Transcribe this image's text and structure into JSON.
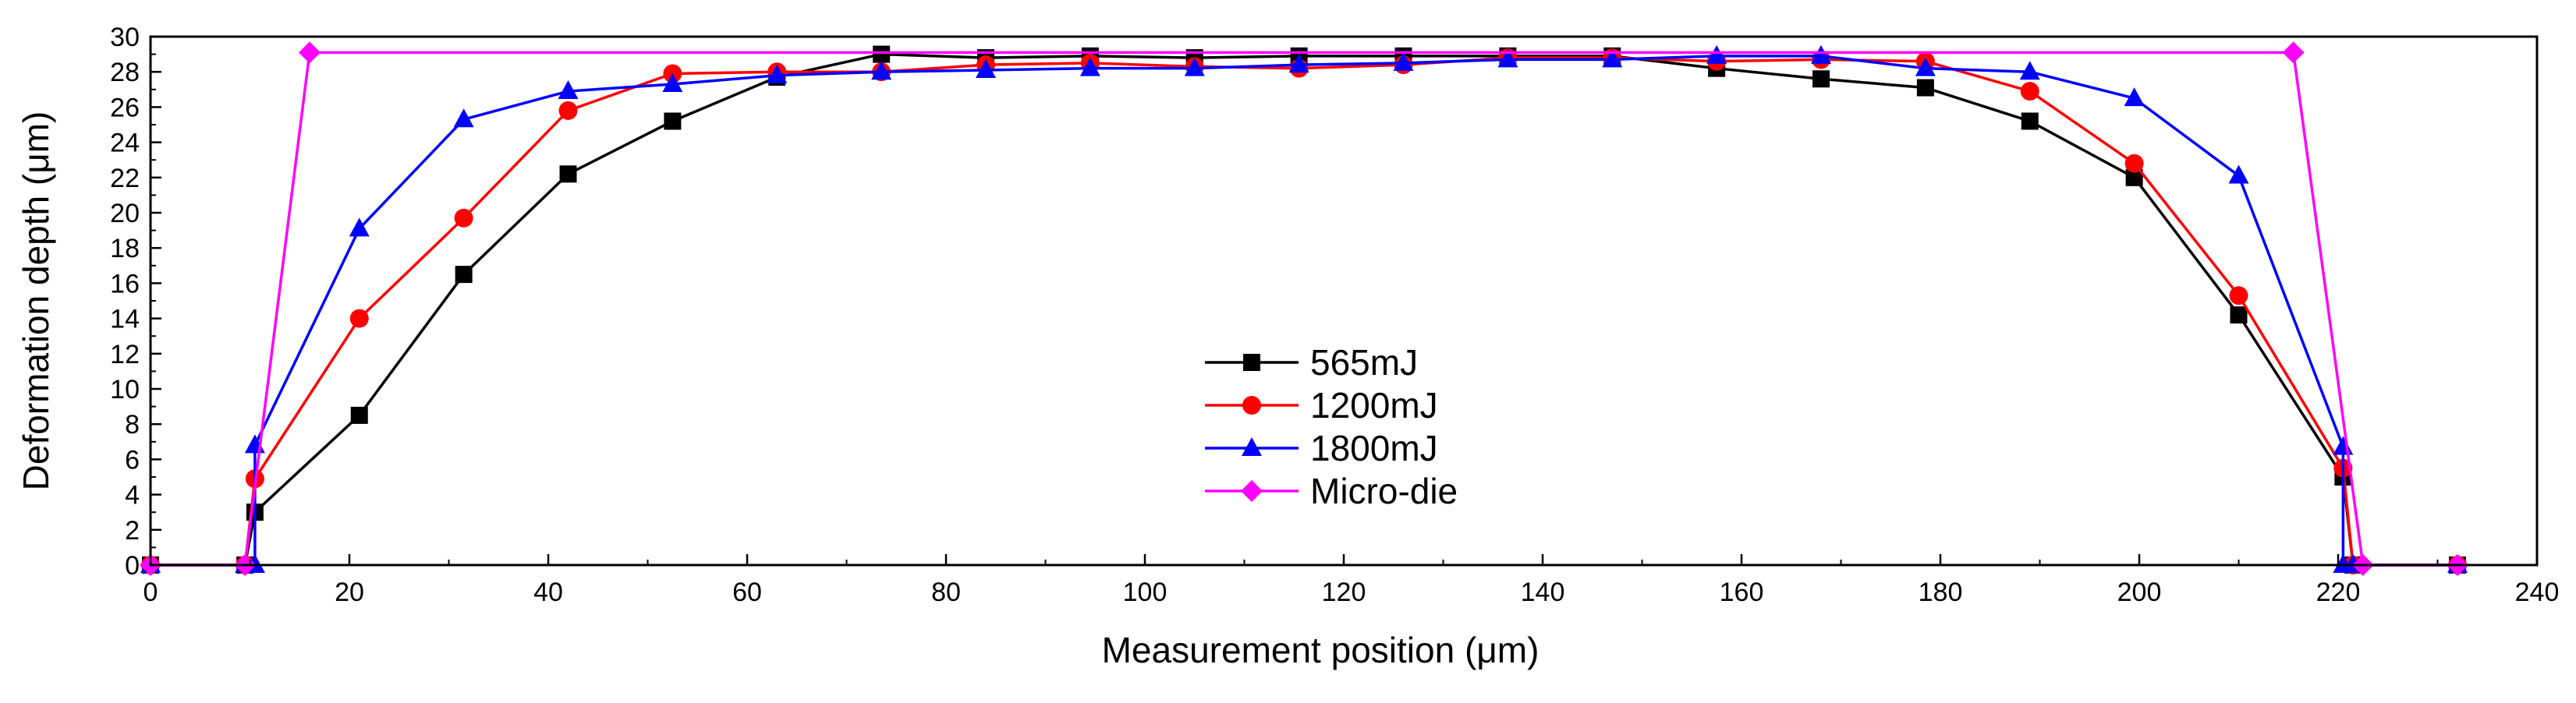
{
  "chart_data": {
    "type": "line",
    "title": "",
    "xlabel": "Measurement position (μm)",
    "ylabel": "Deformation depth (μm)",
    "xlim": [
      0,
      240
    ],
    "ylim": [
      0,
      30
    ],
    "xticks": [
      0,
      20,
      40,
      60,
      80,
      100,
      120,
      140,
      160,
      180,
      200,
      220,
      240
    ],
    "yticks": [
      0,
      2,
      4,
      6,
      8,
      10,
      12,
      14,
      16,
      18,
      20,
      22,
      24,
      26,
      28,
      30
    ],
    "grid": false,
    "legend_position": "center",
    "series": [
      {
        "name": "565mJ",
        "color": "#000000",
        "marker": "square",
        "x": [
          0,
          9.5,
          10.5,
          21,
          31.5,
          42,
          52.5,
          63,
          73.5,
          84,
          94.5,
          105,
          115.5,
          126,
          136.5,
          147,
          157.5,
          168,
          178.5,
          189,
          199.5,
          210,
          220.5,
          221.5,
          232
        ],
        "y": [
          0,
          0,
          3,
          8.5,
          16.5,
          22.2,
          25.2,
          27.7,
          29,
          28.8,
          28.9,
          28.8,
          28.9,
          28.9,
          28.9,
          28.9,
          28.2,
          27.6,
          27.1,
          25.2,
          22,
          14.2,
          5,
          0,
          0
        ]
      },
      {
        "name": "1200mJ",
        "color": "#ff0000",
        "marker": "circle",
        "x": [
          0,
          9.5,
          10.5,
          21,
          31.5,
          42,
          52.5,
          63,
          73.5,
          84,
          94.5,
          105,
          115.5,
          126,
          136.5,
          147,
          157.5,
          168,
          178.5,
          189,
          199.5,
          210,
          220.5,
          221.5,
          232
        ],
        "y": [
          0,
          0,
          4.9,
          14,
          19.7,
          25.8,
          27.9,
          28,
          28,
          28.4,
          28.5,
          28.3,
          28.2,
          28.4,
          28.8,
          28.8,
          28.6,
          28.7,
          28.6,
          26.9,
          22.8,
          15.3,
          5.5,
          0,
          0
        ]
      },
      {
        "name": "1800mJ",
        "color": "#0000ff",
        "marker": "triangle",
        "x": [
          0,
          9.5,
          10.5,
          10.5,
          21,
          31.5,
          42,
          52.5,
          63,
          73.5,
          84,
          94.5,
          105,
          115.5,
          126,
          136.5,
          147,
          157.5,
          168,
          178.5,
          189,
          199.5,
          210,
          220.5,
          220.5,
          221.5,
          232
        ],
        "y": [
          0,
          0,
          0,
          6.8,
          19.1,
          25.3,
          26.9,
          27.3,
          27.8,
          28,
          28.1,
          28.2,
          28.2,
          28.4,
          28.5,
          28.7,
          28.7,
          28.9,
          28.9,
          28.2,
          28,
          26.5,
          22.1,
          6.7,
          0,
          0,
          0
        ]
      },
      {
        "name": "Micro-die",
        "color": "#ff00ff",
        "marker": "diamond",
        "x": [
          0,
          9.5,
          16,
          215.5,
          222.5,
          232
        ],
        "y": [
          0,
          0,
          29.1,
          29.1,
          0,
          0
        ]
      }
    ]
  }
}
